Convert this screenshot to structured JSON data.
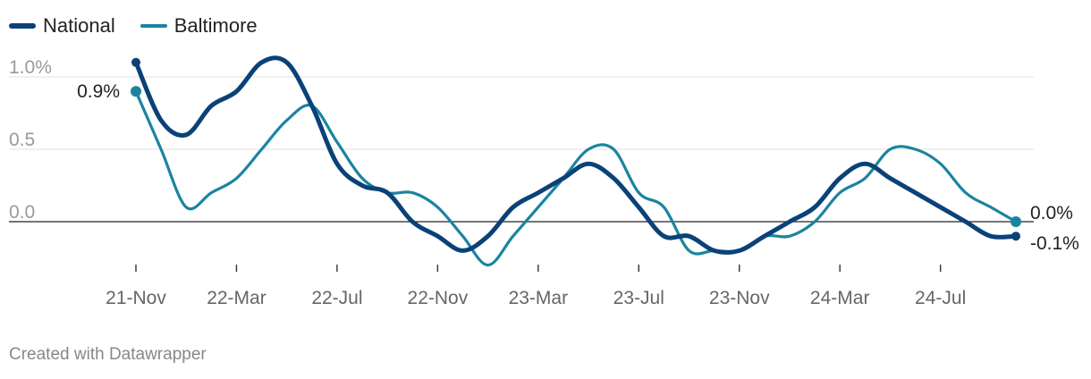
{
  "legend": [
    {
      "name": "National",
      "color": "#0a4278"
    },
    {
      "name": "Baltimore",
      "color": "#1b84a0"
    }
  ],
  "footer": {
    "credit": "Created with Datawrapper"
  },
  "chart_data": {
    "type": "line",
    "title": "",
    "xlabel": "",
    "ylabel": "",
    "ylim": [
      -0.3,
      1.2
    ],
    "yticks": [
      0.0,
      0.5,
      1.0
    ],
    "ytick_labels": [
      "0.0",
      "0.5",
      "1.0%"
    ],
    "x_tick_labels": [
      "21-Nov",
      "22-Mar",
      "22-Jul",
      "22-Nov",
      "23-Mar",
      "23-Jul",
      "23-Nov",
      "24-Mar",
      "24-Jul"
    ],
    "x_tick_months": [
      0,
      4,
      8,
      12,
      16,
      20,
      24,
      28,
      32
    ],
    "x_months": [
      0,
      1,
      2,
      3,
      4,
      5,
      6,
      7,
      8,
      9,
      10,
      11,
      12,
      13,
      14,
      15,
      16,
      17,
      18,
      19,
      20,
      21,
      22,
      23,
      24,
      25,
      26,
      27,
      28,
      29,
      30,
      31,
      32,
      33,
      34,
      35
    ],
    "series": [
      {
        "name": "National",
        "color": "#0a4278",
        "values": [
          1.1,
          0.7,
          0.6,
          0.8,
          0.9,
          1.1,
          1.1,
          0.8,
          0.4,
          0.25,
          0.2,
          0.0,
          -0.1,
          -0.2,
          -0.1,
          0.1,
          0.2,
          0.3,
          0.4,
          0.3,
          0.1,
          -0.1,
          -0.1,
          -0.2,
          -0.2,
          -0.1,
          0.0,
          0.1,
          0.3,
          0.4,
          0.3,
          0.2,
          0.1,
          0.0,
          -0.1,
          -0.1
        ]
      },
      {
        "name": "Baltimore",
        "color": "#1b84a0",
        "values": [
          0.9,
          0.5,
          0.1,
          0.2,
          0.3,
          0.5,
          0.7,
          0.8,
          0.55,
          0.3,
          0.2,
          0.2,
          0.1,
          -0.1,
          -0.3,
          -0.1,
          0.1,
          0.3,
          0.5,
          0.5,
          0.2,
          0.1,
          -0.2,
          -0.2,
          -0.2,
          -0.1,
          -0.1,
          0.0,
          0.2,
          0.3,
          0.5,
          0.5,
          0.4,
          0.2,
          0.1,
          0.0
        ]
      }
    ],
    "start_labels": [
      {
        "series": "Baltimore",
        "text": "0.9%"
      }
    ],
    "end_labels": [
      {
        "series": "Baltimore",
        "text": "0.0%"
      },
      {
        "series": "National",
        "text": "-0.1%"
      }
    ]
  }
}
